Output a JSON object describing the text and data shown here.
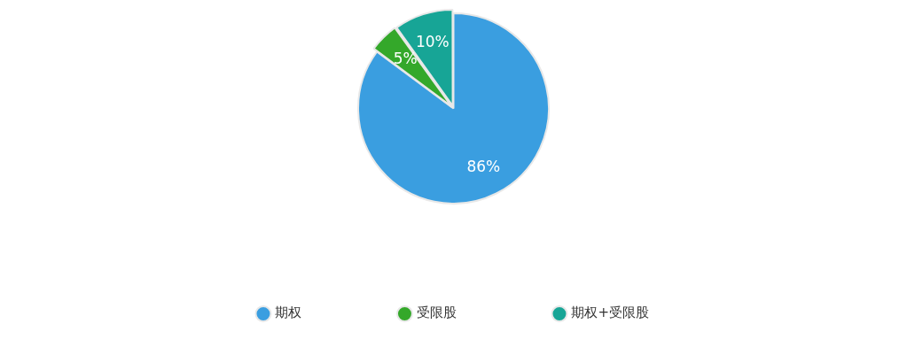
{
  "chart_data": {
    "type": "pie",
    "categories": [
      "期权",
      "受限股",
      "期权+受限股"
    ],
    "values": [
      86,
      5,
      10
    ],
    "colors": [
      "#3a9ee0",
      "#34a82a",
      "#17a596"
    ],
    "value_labels": [
      "86%",
      "5%",
      "10%"
    ],
    "legend": "bottom"
  }
}
